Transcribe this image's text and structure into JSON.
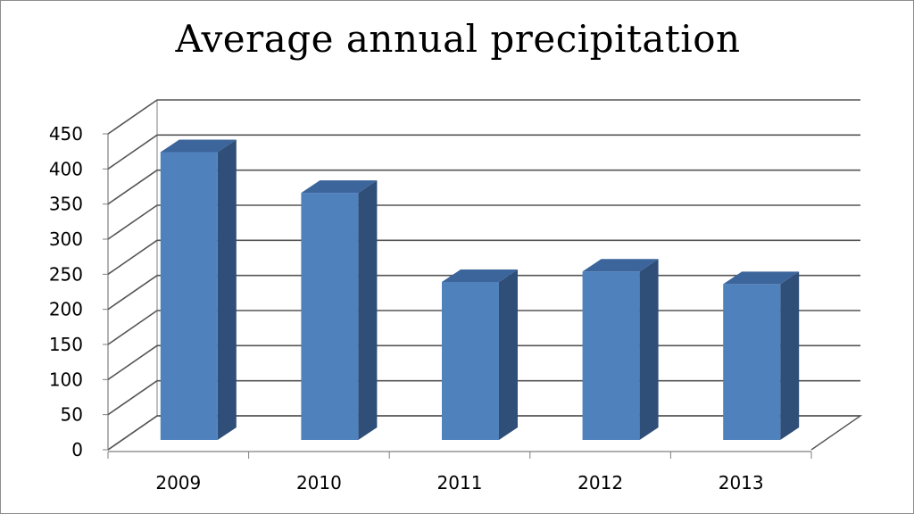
{
  "chart_data": {
    "type": "bar",
    "title": "Average annual precipitation",
    "categories": [
      "2009",
      "2010",
      "2011",
      "2012",
      "2013"
    ],
    "values": [
      410,
      352,
      225,
      240,
      222
    ],
    "xlabel": "",
    "ylabel": "",
    "ylim": [
      0,
      450
    ],
    "yticks": [
      0,
      50,
      100,
      150,
      200,
      250,
      300,
      350,
      400,
      450
    ],
    "grid": true,
    "three_d": true,
    "legend": "none",
    "colors": {
      "bar_front": "#4f81bd",
      "bar_side": "#2f4f79",
      "bar_top": "#3c659b",
      "gridline": "#555555",
      "axis": "#7f7f7f"
    }
  }
}
